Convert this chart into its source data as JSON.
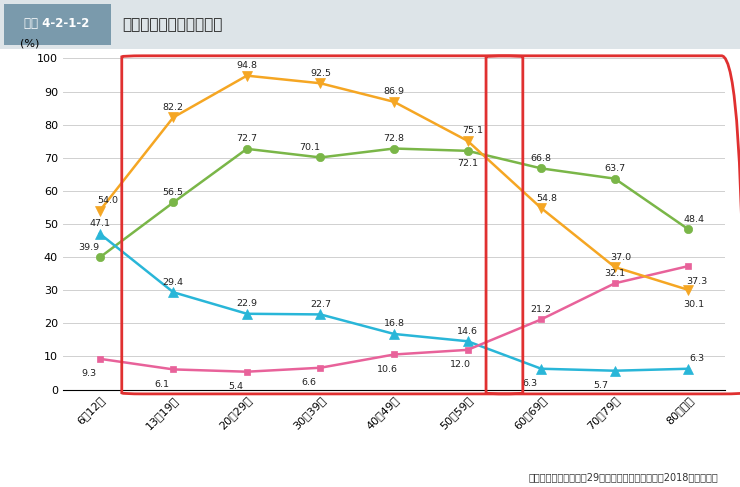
{
  "title": "インターネット接続端末",
  "label_tag": "図表 4-2-1-2",
  "ylabel": "(%)",
  "categories": [
    "6～12歳",
    "13～19歳",
    "20～29歳",
    "30～39歳",
    "40～49歳",
    "50～59歳",
    "60～69歳",
    "70～79歳",
    "80歳以上"
  ],
  "series": {
    "パソコン": {
      "values": [
        39.9,
        56.5,
        72.7,
        70.1,
        72.8,
        72.1,
        66.8,
        63.7,
        48.4
      ],
      "color": "#7ab648",
      "marker": "o",
      "markersize": 6
    },
    "ゲーム機・TV等": {
      "values": [
        47.1,
        29.4,
        22.9,
        22.7,
        16.8,
        14.6,
        6.3,
        5.7,
        6.3
      ],
      "color": "#29b6d8",
      "marker": "^",
      "markersize": 7
    },
    "携帯電話（PHSを含む）": {
      "values": [
        9.3,
        6.1,
        5.4,
        6.6,
        10.6,
        12.0,
        21.2,
        32.1,
        37.3
      ],
      "color": "#e8629a",
      "marker": "s",
      "markersize": 5
    },
    "スマートフォン": {
      "values": [
        54.0,
        82.2,
        94.8,
        92.5,
        86.9,
        75.1,
        54.8,
        37.0,
        30.1
      ],
      "color": "#f5a623",
      "marker": "v",
      "markersize": 7
    }
  },
  "ylim": [
    0,
    100
  ],
  "yticks": [
    0,
    10,
    20,
    30,
    40,
    50,
    60,
    70,
    80,
    90,
    100
  ],
  "source": "（出典）総務省「平成29年通信利用動向調査」（2018）より作成",
  "header_bg": "#b0bec5",
  "header_tab_bg": "#78909c",
  "header_text_color": "#ffffff",
  "red_box_color": "#e03030",
  "grid_color": "#d0d0d0",
  "background_color": "#ffffff"
}
